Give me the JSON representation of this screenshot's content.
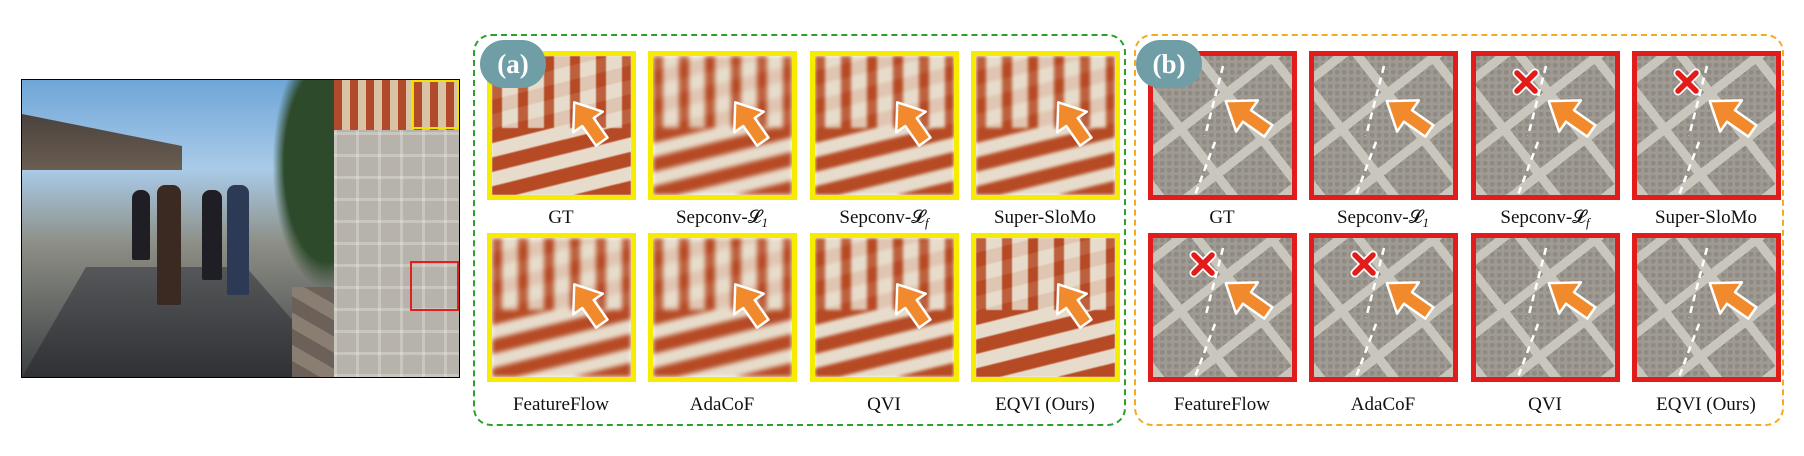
{
  "panel_a": {
    "badge": "(a)",
    "row1": [
      {
        "main": "GT",
        "sub": ""
      },
      {
        "main": "Sepconv-𝓛",
        "sub": "1"
      },
      {
        "main": "Sepconv-𝓛",
        "sub": "f"
      },
      {
        "main": "Super-SloMo",
        "sub": ""
      }
    ],
    "row2": [
      {
        "main": "FeatureFlow",
        "sub": ""
      },
      {
        "main": "AdaCoF",
        "sub": ""
      },
      {
        "main": "QVI",
        "sub": ""
      },
      {
        "main": "EQVI (Ours)",
        "sub": ""
      }
    ]
  },
  "panel_b": {
    "badge": "(b)",
    "row1": [
      {
        "main": "GT",
        "sub": ""
      },
      {
        "main": "Sepconv-𝓛",
        "sub": "1"
      },
      {
        "main": "Sepconv-𝓛",
        "sub": "f"
      },
      {
        "main": "Super-SloMo",
        "sub": ""
      }
    ],
    "row2": [
      {
        "main": "FeatureFlow",
        "sub": ""
      },
      {
        "main": "AdaCoF",
        "sub": ""
      },
      {
        "main": "QVI",
        "sub": ""
      },
      {
        "main": "EQVI (Ours)",
        "sub": ""
      }
    ]
  },
  "colors": {
    "panel_a_border": "#2ba02b",
    "panel_b_border": "#f2ac1f",
    "tile_a_frame": "#f7ec00",
    "tile_b_frame": "#e21b1b",
    "arrow": "#f08a2c",
    "badge": "#6f9ea6",
    "error_mark": "#e21b1b"
  },
  "icons": {
    "arrow": "orange-arrow-icon",
    "error": "red-x-icon"
  }
}
